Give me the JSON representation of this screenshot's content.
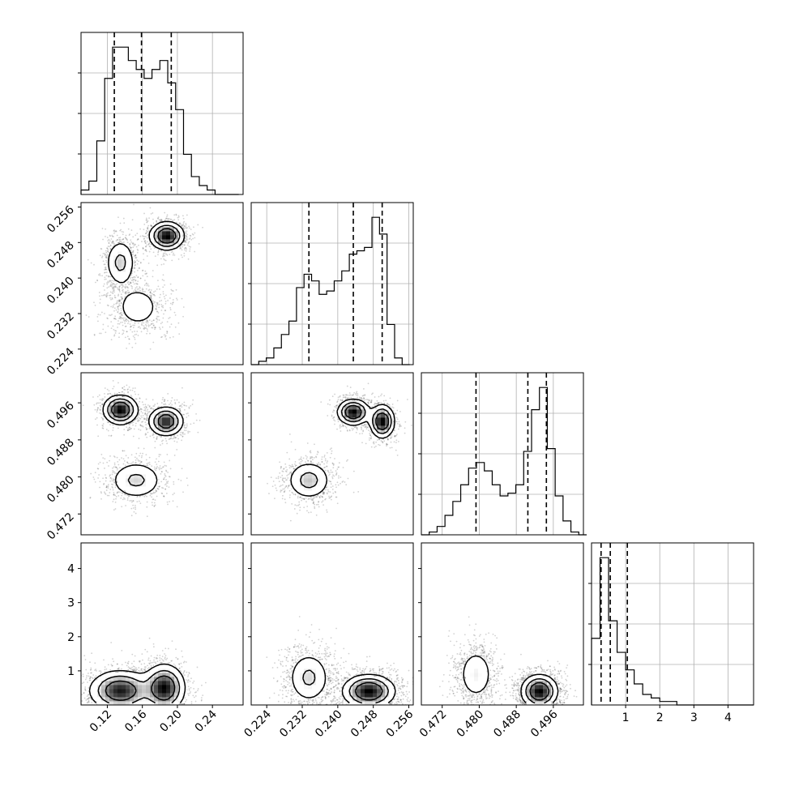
{
  "chart_data": {
    "type": "corner",
    "grid": true,
    "parameters": [
      {
        "range": [
          0.09,
          0.275
        ],
        "ticks": [
          0.12,
          0.16,
          0.2,
          0.24
        ],
        "tick_labels": [
          "0.12",
          "0.16",
          "0.20",
          "0.24"
        ],
        "quantiles": [
          0.128,
          0.159,
          0.193
        ],
        "histogram": {
          "edges": [
            0.09,
            0.099,
            0.108,
            0.117,
            0.126,
            0.135,
            0.144,
            0.153,
            0.162,
            0.171,
            0.18,
            0.189,
            0.198,
            0.207,
            0.216,
            0.225,
            0.234,
            0.243,
            0.252,
            0.261,
            0.27
          ],
          "counts": [
            1,
            3,
            12,
            26,
            33,
            33,
            30,
            28,
            26,
            28,
            30,
            25,
            19,
            9,
            4,
            2,
            1,
            0,
            0,
            0
          ]
        }
      },
      {
        "range": [
          0.2205,
          0.257
        ],
        "ticks": [
          0.224,
          0.232,
          0.24,
          0.248,
          0.256
        ],
        "tick_labels": [
          "0.224",
          "0.232",
          "0.240",
          "0.248",
          "0.256"
        ],
        "quantiles": [
          0.2335,
          0.2435,
          0.25
        ],
        "histogram": {
          "edges": [
            0.2205,
            0.2222,
            0.2239,
            0.2256,
            0.2273,
            0.229,
            0.2307,
            0.2324,
            0.2341,
            0.2358,
            0.2375,
            0.2392,
            0.2409,
            0.2426,
            0.2443,
            0.246,
            0.2477,
            0.2494,
            0.2511,
            0.2528,
            0.2545,
            0.2562
          ],
          "counts": [
            0,
            1,
            2,
            5,
            9,
            13,
            23,
            27,
            25,
            21,
            22,
            25,
            28,
            33,
            34,
            35,
            44,
            39,
            12,
            2,
            0
          ]
        }
      },
      {
        "range": [
          0.4675,
          0.5025
        ],
        "ticks": [
          0.472,
          0.48,
          0.488,
          0.496
        ],
        "tick_labels": [
          "0.472",
          "0.480",
          "0.488",
          "0.496"
        ],
        "quantiles": [
          0.4793,
          0.4905,
          0.4945
        ],
        "histogram": {
          "edges": [
            0.4675,
            0.4692,
            0.4709,
            0.4726,
            0.4743,
            0.476,
            0.4777,
            0.4794,
            0.4811,
            0.4828,
            0.4845,
            0.4862,
            0.4879,
            0.4896,
            0.4913,
            0.493,
            0.4947,
            0.4964,
            0.4981,
            0.4998,
            0.5015,
            0.5032
          ],
          "counts": [
            0,
            1,
            3,
            7,
            12,
            18,
            24,
            26,
            23,
            18,
            14,
            15,
            18,
            30,
            45,
            53,
            31,
            14,
            5,
            1,
            0
          ]
        }
      },
      {
        "range": [
          0.0,
          4.75
        ],
        "ticks": [
          1,
          2,
          3,
          4
        ],
        "tick_labels": [
          "1",
          "2",
          "3",
          "4"
        ],
        "quantiles": [
          0.28,
          0.55,
          1.05
        ],
        "histogram": {
          "edges": [
            0.0,
            0.25,
            0.5,
            0.75,
            1.0,
            1.25,
            1.5,
            1.75,
            2.0,
            2.25,
            2.5,
            2.75,
            3.0,
            3.25,
            3.5,
            3.75,
            4.0,
            4.25,
            4.5,
            4.75
          ],
          "counts": [
            19,
            42,
            24,
            15,
            10,
            6,
            3,
            2,
            1,
            1,
            0,
            0,
            0,
            0,
            0,
            0,
            0,
            0,
            0
          ]
        }
      }
    ],
    "density_modes": {
      "p0": [
        {
          "mean": 0.135,
          "sd": 0.016,
          "weight": 0.45
        },
        {
          "mean": 0.187,
          "sd": 0.01,
          "weight": 0.4
        },
        {
          "mean": 0.155,
          "sd": 0.02,
          "weight": 0.15
        }
      ],
      "pairs": {
        "1-0": [
          {
            "m": [
              0.135,
              0.2435
            ],
            "s": [
              0.009,
              0.0028
            ],
            "w": 0.28
          },
          {
            "m": [
              0.155,
              0.2335
            ],
            "s": [
              0.016,
              0.003
            ],
            "w": 0.3
          },
          {
            "m": [
              0.188,
              0.2495
            ],
            "s": [
              0.01,
              0.0016
            ],
            "w": 0.42
          }
        ],
        "2-0": [
          {
            "m": [
              0.135,
              0.4945
            ],
            "s": [
              0.01,
              0.0016
            ],
            "w": 0.36
          },
          {
            "m": [
              0.187,
              0.492
            ],
            "s": [
              0.01,
              0.0016
            ],
            "w": 0.32
          },
          {
            "m": [
              0.153,
              0.4793
            ],
            "s": [
              0.016,
              0.0022
            ],
            "w": 0.32
          }
        ],
        "2-1": [
          {
            "m": [
              0.2335,
              0.4793
            ],
            "s": [
              0.0026,
              0.0022
            ],
            "w": 0.34
          },
          {
            "m": [
              0.2435,
              0.494
            ],
            "s": [
              0.0018,
              0.0014
            ],
            "w": 0.33
          },
          {
            "m": [
              0.25,
              0.492
            ],
            "s": [
              0.0014,
              0.0018
            ],
            "w": 0.33
          }
        ],
        "3-0": [
          {
            "m": [
              0.135,
              0.42
            ],
            "s": [
              0.018,
              0.3
            ],
            "w": 0.55
          },
          {
            "m": [
              0.185,
              0.5
            ],
            "s": [
              0.012,
              0.35
            ],
            "w": 0.45
          }
        ],
        "3-1": [
          {
            "m": [
              0.2335,
              0.8
            ],
            "s": [
              0.0025,
              0.4
            ],
            "w": 0.35
          },
          {
            "m": [
              0.247,
              0.4
            ],
            "s": [
              0.003,
              0.25
            ],
            "w": 0.65
          }
        ],
        "3-2": [
          {
            "m": [
              0.4793,
              0.9
            ],
            "s": [
              0.002,
              0.4
            ],
            "w": 0.35
          },
          {
            "m": [
              0.493,
              0.4
            ],
            "s": [
              0.002,
              0.25
            ],
            "w": 0.65
          }
        ]
      }
    }
  }
}
